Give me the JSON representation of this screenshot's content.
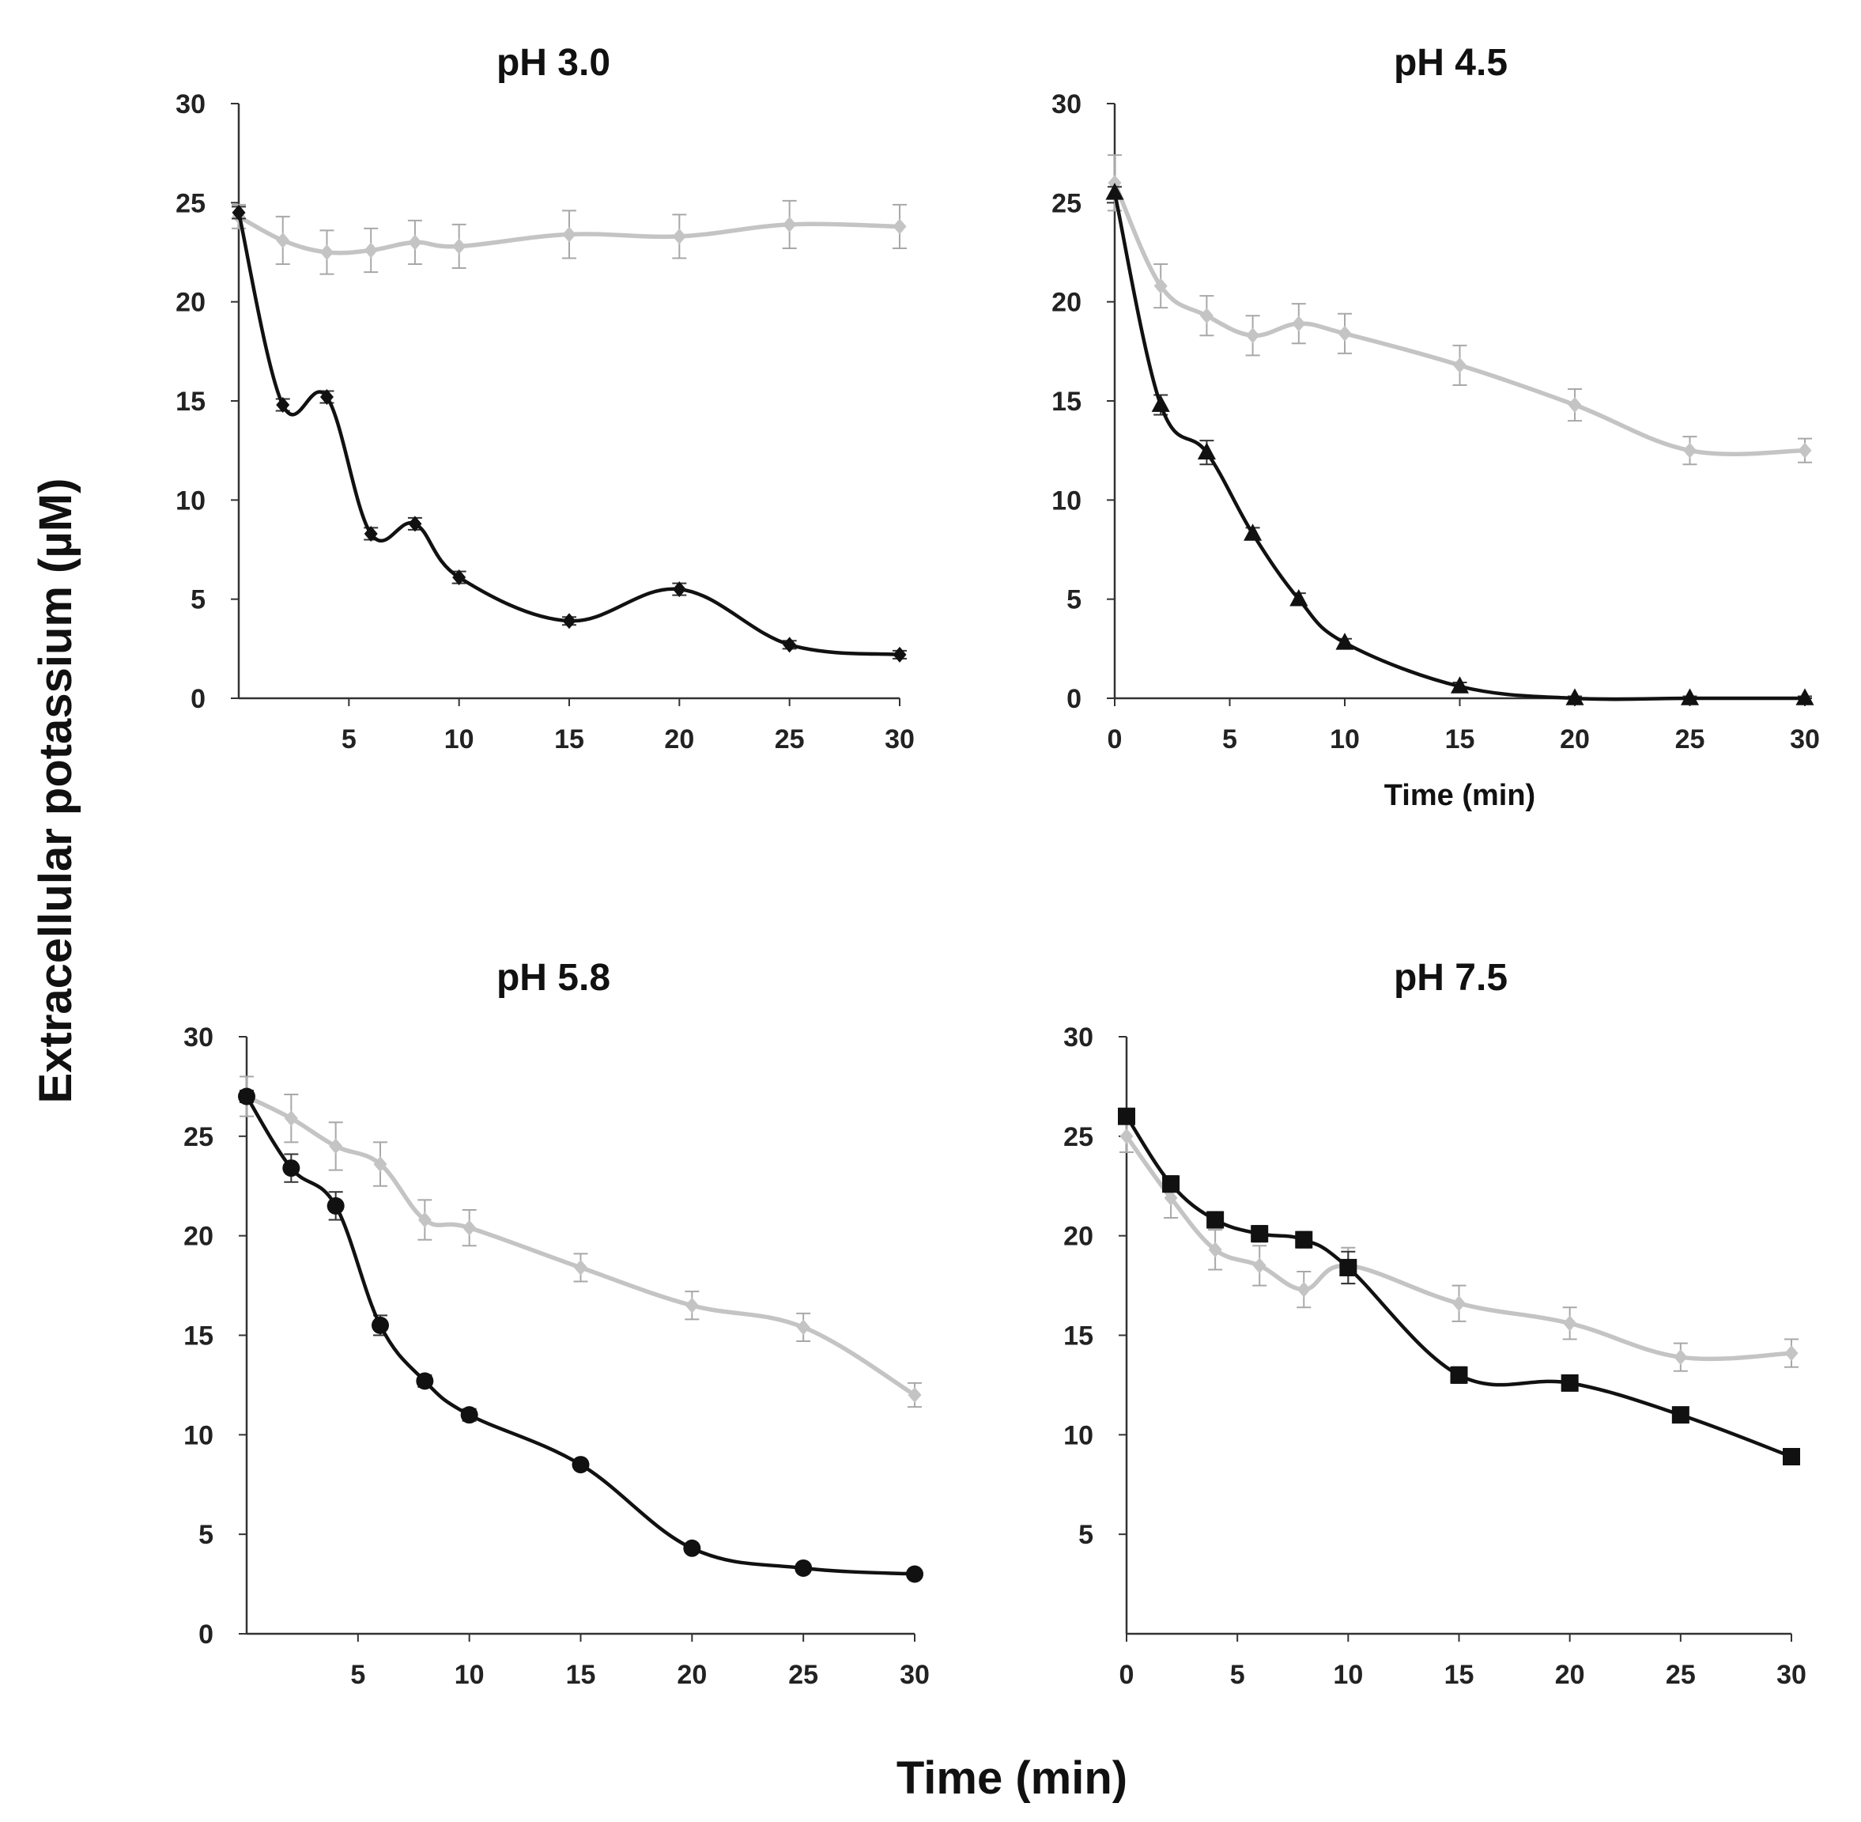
{
  "figure": {
    "ylabel": "Extracellular potassium (µM)",
    "xlabel": "Time (min)"
  },
  "colors": {
    "dark": "#111111",
    "light": "#c4c4c4",
    "axis": "#333333"
  },
  "chart_data": [
    {
      "type": "line",
      "title": "pH 3.0",
      "xlabel": "",
      "xlim": [
        0,
        30
      ],
      "ylim": [
        0,
        30
      ],
      "xticks": [
        "5",
        "10",
        "15",
        "20",
        "25",
        "30"
      ],
      "yticks": [
        "0",
        "5",
        "10",
        "15",
        "20",
        "25",
        "30"
      ],
      "series": [
        {
          "name": "light",
          "marker": "diamond",
          "x": [
            0,
            2,
            4,
            6,
            8,
            10,
            15,
            20,
            25,
            30
          ],
          "y": [
            24.3,
            23.1,
            22.5,
            22.6,
            23.0,
            22.8,
            23.4,
            23.3,
            23.9,
            23.8
          ],
          "err": [
            0.6,
            1.2,
            1.1,
            1.1,
            1.1,
            1.1,
            1.2,
            1.1,
            1.2,
            1.1
          ]
        },
        {
          "name": "dark",
          "marker": "diamond",
          "x": [
            0,
            2,
            4,
            6,
            8,
            10,
            15,
            20,
            25,
            30
          ],
          "y": [
            24.5,
            14.8,
            15.2,
            8.3,
            8.8,
            6.1,
            3.9,
            5.5,
            2.7,
            2.2
          ],
          "err": [
            0.3,
            0.3,
            0.3,
            0.3,
            0.3,
            0.3,
            0.2,
            0.3,
            0.2,
            0.2
          ]
        }
      ]
    },
    {
      "type": "line",
      "title": "pH 4.5",
      "xlabel": "Time (min)",
      "xlim": [
        0,
        30
      ],
      "ylim": [
        0,
        30
      ],
      "xticks": [
        "0",
        "5",
        "10",
        "15",
        "20",
        "25",
        "30"
      ],
      "yticks": [
        "0",
        "5",
        "10",
        "15",
        "20",
        "25",
        "30"
      ],
      "series": [
        {
          "name": "light",
          "marker": "diamond",
          "x": [
            0,
            2,
            4,
            6,
            8,
            10,
            15,
            20,
            25,
            30
          ],
          "y": [
            26.0,
            20.8,
            19.3,
            18.3,
            18.9,
            18.4,
            16.8,
            14.8,
            12.5,
            12.5
          ],
          "err": [
            1.4,
            1.1,
            1.0,
            1.0,
            1.0,
            1.0,
            1.0,
            0.8,
            0.7,
            0.6
          ]
        },
        {
          "name": "dark",
          "marker": "triangle",
          "x": [
            0,
            2,
            4,
            6,
            8,
            10,
            15,
            20,
            25,
            30
          ],
          "y": [
            25.5,
            14.8,
            12.4,
            8.3,
            5.0,
            2.8,
            0.6,
            0.0,
            0.0,
            0.0
          ],
          "err": [
            0.3,
            0.5,
            0.6,
            0.3,
            0.3,
            0.2,
            0.2,
            0.1,
            0.1,
            0.1
          ]
        }
      ]
    },
    {
      "type": "line",
      "title": "pH 5.8",
      "xlabel": "",
      "xlim": [
        0,
        30
      ],
      "ylim": [
        0,
        30
      ],
      "xticks": [
        "5",
        "10",
        "15",
        "20",
        "25",
        "30"
      ],
      "yticks": [
        "0",
        "5",
        "10",
        "15",
        "20",
        "25",
        "30"
      ],
      "series": [
        {
          "name": "light",
          "marker": "diamond",
          "x": [
            0,
            2,
            4,
            6,
            8,
            10,
            15,
            20,
            25,
            30
          ],
          "y": [
            27.0,
            25.9,
            24.5,
            23.6,
            20.8,
            20.4,
            18.4,
            16.5,
            15.4,
            12.0
          ],
          "err": [
            1.0,
            1.2,
            1.2,
            1.1,
            1.0,
            0.9,
            0.7,
            0.7,
            0.7,
            0.6
          ]
        },
        {
          "name": "dark",
          "marker": "circle",
          "x": [
            0,
            2,
            4,
            6,
            8,
            10,
            15,
            20,
            25,
            30
          ],
          "y": [
            27.0,
            23.4,
            21.5,
            15.5,
            12.7,
            11.0,
            8.5,
            4.3,
            3.3,
            3.0
          ],
          "err": [
            0.3,
            0.7,
            0.7,
            0.5,
            0.3,
            0.3,
            0.2,
            0.2,
            0.2,
            0.2
          ]
        }
      ]
    },
    {
      "type": "line",
      "title": "pH 7.5",
      "xlabel": "",
      "xlim": [
        0,
        30
      ],
      "ylim": [
        0,
        30
      ],
      "xticks": [
        "0",
        "5",
        "10",
        "15",
        "20",
        "25",
        "30"
      ],
      "yticks": [
        "5",
        "10",
        "15",
        "20",
        "25",
        "30"
      ],
      "series": [
        {
          "name": "light",
          "marker": "diamond",
          "x": [
            0,
            2,
            4,
            6,
            8,
            10,
            15,
            20,
            25,
            30
          ],
          "y": [
            25.0,
            21.9,
            19.3,
            18.5,
            17.3,
            18.5,
            16.6,
            15.6,
            13.9,
            14.1
          ],
          "err": [
            0.8,
            1.0,
            1.0,
            1.0,
            0.9,
            0.9,
            0.9,
            0.8,
            0.7,
            0.7
          ]
        },
        {
          "name": "dark",
          "marker": "square",
          "x": [
            0,
            2,
            4,
            6,
            8,
            10,
            15,
            20,
            25,
            30
          ],
          "y": [
            26.0,
            22.6,
            20.8,
            20.1,
            19.8,
            18.4,
            13.0,
            12.6,
            11.0,
            8.9
          ],
          "err": [
            0.3,
            0.4,
            0.4,
            0.4,
            0.4,
            0.8,
            0.4,
            0.3,
            0.3,
            0.3
          ]
        }
      ]
    }
  ]
}
